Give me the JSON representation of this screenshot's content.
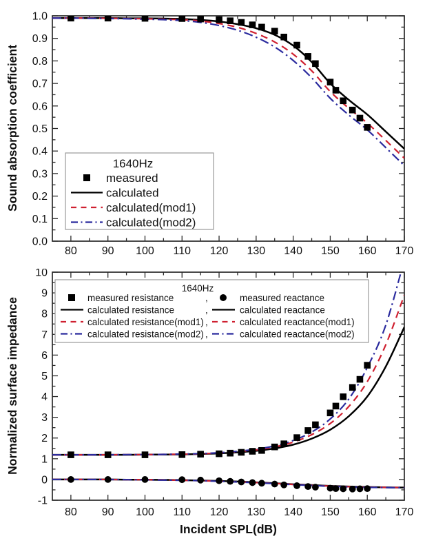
{
  "figure": {
    "background": "#ffffff",
    "frame_color": "#2a2a2a",
    "text_color": "#111111"
  },
  "colors": {
    "measured": "#000000",
    "calculated": "#000000",
    "mod1": "#cf2030",
    "mod2": "#2b2b9e"
  },
  "chart_data": [
    {
      "id": "absorption",
      "type": "line",
      "title": "",
      "xlabel": "",
      "ylabel": "Sound absorption coefficient",
      "xlim": [
        75,
        170
      ],
      "ylim": [
        0.0,
        1.0
      ],
      "x_ticks": [
        80,
        90,
        100,
        110,
        120,
        130,
        140,
        150,
        160,
        170
      ],
      "x_minor_ticks": [
        85,
        95,
        105,
        115,
        125,
        135,
        145,
        155,
        165
      ],
      "y_ticks": [
        0.0,
        0.1,
        0.2,
        0.3,
        0.4,
        0.5,
        0.6,
        0.7,
        0.8,
        0.9,
        1.0
      ],
      "y_minor_ticks": [
        0.05,
        0.15,
        0.25,
        0.35,
        0.45,
        0.55,
        0.65,
        0.75,
        0.85,
        0.95
      ],
      "y_tick_decimals": 1,
      "grid": false,
      "legend": {
        "position": "lower-left-inside",
        "title": "1640Hz",
        "entries": [
          {
            "symbol": "square",
            "color": "#000000",
            "label": "measured"
          },
          {
            "symbol": "solid",
            "color": "#000000",
            "label": "calculated"
          },
          {
            "symbol": "dashed",
            "color": "#cf2030",
            "label": "calculated(mod1)"
          },
          {
            "symbol": "dashdot",
            "color": "#2b2b9e",
            "label": "calculated(mod2)"
          }
        ]
      },
      "series": [
        {
          "name": "calculated",
          "style": "solid",
          "color": "#000000",
          "x": [
            75,
            80,
            85,
            90,
            95,
            100,
            105,
            110,
            115,
            120,
            125,
            130,
            135,
            140,
            145,
            150,
            155,
            160,
            165,
            170
          ],
          "y": [
            0.99,
            0.99,
            0.99,
            0.99,
            0.989,
            0.989,
            0.988,
            0.986,
            0.982,
            0.975,
            0.963,
            0.945,
            0.916,
            0.868,
            0.795,
            0.7,
            0.627,
            0.562,
            0.486,
            0.41
          ]
        },
        {
          "name": "calculated(mod1)",
          "style": "dashed",
          "color": "#cf2030",
          "x": [
            75,
            80,
            85,
            90,
            95,
            100,
            105,
            110,
            115,
            120,
            125,
            130,
            135,
            140,
            145,
            150,
            155,
            160,
            165,
            170
          ],
          "y": [
            0.99,
            0.99,
            0.99,
            0.989,
            0.988,
            0.987,
            0.985,
            0.983,
            0.977,
            0.966,
            0.949,
            0.922,
            0.884,
            0.83,
            0.756,
            0.664,
            0.59,
            0.524,
            0.447,
            0.368
          ]
        },
        {
          "name": "calculated(mod2)",
          "style": "dashdot",
          "color": "#2b2b9e",
          "x": [
            75,
            80,
            85,
            90,
            95,
            100,
            105,
            110,
            115,
            120,
            125,
            130,
            135,
            140,
            145,
            150,
            155,
            160,
            165,
            170
          ],
          "y": [
            0.99,
            0.99,
            0.989,
            0.988,
            0.987,
            0.985,
            0.983,
            0.979,
            0.971,
            0.957,
            0.936,
            0.905,
            0.862,
            0.802,
            0.725,
            0.634,
            0.56,
            0.494,
            0.415,
            0.335
          ]
        },
        {
          "name": "measured",
          "style": "scatter-square",
          "color": "#000000",
          "x": [
            80,
            90,
            100,
            110,
            115,
            120,
            123,
            126,
            129,
            131.5,
            135,
            137.5,
            141,
            144,
            146,
            150,
            151.5,
            153.5,
            156,
            158,
            160
          ],
          "y": [
            0.99,
            0.99,
            0.989,
            0.988,
            0.986,
            0.983,
            0.978,
            0.971,
            0.96,
            0.95,
            0.932,
            0.906,
            0.87,
            0.82,
            0.788,
            0.706,
            0.67,
            0.623,
            0.582,
            0.546,
            0.505
          ]
        }
      ]
    },
    {
      "id": "impedance",
      "type": "line",
      "title": "",
      "xlabel": "Incident SPL(dB)",
      "ylabel": "Normalized surface impedance",
      "xlim": [
        75,
        170
      ],
      "ylim": [
        -1,
        10
      ],
      "x_ticks": [
        80,
        90,
        100,
        110,
        120,
        130,
        140,
        150,
        160,
        170
      ],
      "x_minor_ticks": [
        85,
        95,
        105,
        115,
        125,
        135,
        145,
        155,
        165
      ],
      "y_ticks": [
        -1,
        0,
        1,
        2,
        3,
        4,
        5,
        6,
        7,
        8,
        9,
        10
      ],
      "y_minor_ticks": [
        -0.5,
        0.5,
        1.5,
        2.5,
        3.5,
        4.5,
        5.5,
        6.5,
        7.5,
        8.5,
        9.5
      ],
      "y_tick_decimals": 0,
      "grid": false,
      "legend": {
        "position": "upper-left-inside",
        "title": "1640Hz",
        "rows": [
          {
            "left": {
              "symbol": "square",
              "color": "#000000",
              "label": "measured resistance"
            },
            "sep": ",",
            "right": {
              "symbol": "circle",
              "color": "#000000",
              "label": "measured reactance"
            }
          },
          {
            "left": {
              "symbol": "solid",
              "color": "#000000",
              "label": "calculated resistance"
            },
            "sep": ",",
            "right": {
              "symbol": "solid",
              "color": "#000000",
              "label": "calculated reactance"
            }
          },
          {
            "left": {
              "symbol": "dashed",
              "color": "#cf2030",
              "label": "calculated resistance(mod1)"
            },
            "sep": ",",
            "right": {
              "symbol": "dashed",
              "color": "#cf2030",
              "label": "calculated reactance(mod1)"
            }
          },
          {
            "left": {
              "symbol": "dashdot",
              "color": "#2b2b9e",
              "label": "calculated resistance(mod2)"
            },
            "sep": ",",
            "right": {
              "symbol": "dashdot",
              "color": "#2b2b9e",
              "label": "calculated reactance(mod2)"
            }
          }
        ]
      },
      "series": [
        {
          "name": "calculated resistance",
          "style": "solid",
          "color": "#000000",
          "x": [
            75,
            80,
            85,
            90,
            95,
            100,
            105,
            110,
            115,
            120,
            125,
            130,
            135,
            140,
            145,
            150,
            155,
            160,
            165,
            170
          ],
          "y": [
            1.19,
            1.19,
            1.19,
            1.19,
            1.19,
            1.2,
            1.2,
            1.21,
            1.23,
            1.26,
            1.31,
            1.38,
            1.5,
            1.68,
            1.97,
            2.4,
            3.05,
            4.0,
            5.45,
            7.35
          ]
        },
        {
          "name": "calculated resistance(mod1)",
          "style": "dashed",
          "color": "#cf2030",
          "x": [
            75,
            80,
            85,
            90,
            95,
            100,
            105,
            110,
            115,
            120,
            125,
            130,
            135,
            140,
            145,
            150,
            155,
            160,
            165,
            170
          ],
          "y": [
            1.19,
            1.19,
            1.19,
            1.19,
            1.2,
            1.2,
            1.21,
            1.22,
            1.24,
            1.28,
            1.34,
            1.43,
            1.57,
            1.8,
            2.16,
            2.7,
            3.52,
            4.72,
            6.5,
            8.9
          ]
        },
        {
          "name": "calculated resistance(mod2)",
          "style": "dashdot",
          "color": "#2b2b9e",
          "x": [
            75,
            80,
            85,
            90,
            95,
            100,
            105,
            110,
            115,
            120,
            125,
            130,
            135,
            140,
            145,
            150,
            155,
            160,
            165,
            170
          ],
          "y": [
            1.19,
            1.19,
            1.19,
            1.19,
            1.2,
            1.2,
            1.21,
            1.23,
            1.25,
            1.29,
            1.36,
            1.46,
            1.62,
            1.88,
            2.29,
            2.92,
            3.88,
            5.4,
            7.45,
            10.6
          ]
        },
        {
          "name": "calculated reactance",
          "style": "solid",
          "color": "#000000",
          "x": [
            75,
            80,
            85,
            90,
            95,
            100,
            105,
            110,
            115,
            120,
            125,
            130,
            135,
            140,
            145,
            150,
            155,
            160,
            165,
            170
          ],
          "y": [
            0.0,
            0.0,
            0.0,
            0.0,
            -0.01,
            -0.01,
            -0.02,
            -0.03,
            -0.05,
            -0.07,
            -0.1,
            -0.14,
            -0.18,
            -0.23,
            -0.27,
            -0.31,
            -0.34,
            -0.36,
            -0.38,
            -0.39
          ]
        },
        {
          "name": "calculated reactance(mod1)",
          "style": "dashed",
          "color": "#cf2030",
          "x": [
            75,
            80,
            85,
            90,
            95,
            100,
            105,
            110,
            115,
            120,
            125,
            130,
            135,
            140,
            145,
            150,
            155,
            160,
            165,
            170
          ],
          "y": [
            0.0,
            0.0,
            0.0,
            0.0,
            -0.01,
            -0.01,
            -0.02,
            -0.04,
            -0.06,
            -0.08,
            -0.11,
            -0.15,
            -0.19,
            -0.24,
            -0.28,
            -0.32,
            -0.35,
            -0.37,
            -0.38,
            -0.39
          ]
        },
        {
          "name": "calculated reactance(mod2)",
          "style": "dashdot",
          "color": "#2b2b9e",
          "x": [
            75,
            80,
            85,
            90,
            95,
            100,
            105,
            110,
            115,
            120,
            125,
            130,
            135,
            140,
            145,
            150,
            155,
            160,
            165,
            170
          ],
          "y": [
            0.0,
            0.0,
            0.0,
            0.0,
            -0.01,
            -0.02,
            -0.03,
            -0.04,
            -0.06,
            -0.09,
            -0.12,
            -0.16,
            -0.2,
            -0.25,
            -0.29,
            -0.33,
            -0.36,
            -0.38,
            -0.39,
            -0.4
          ]
        },
        {
          "name": "measured resistance",
          "style": "scatter-square",
          "color": "#000000",
          "x": [
            80,
            90,
            100,
            110,
            115,
            120,
            123,
            126,
            129,
            131.5,
            135,
            137.5,
            141,
            144,
            146,
            150,
            151.5,
            153.5,
            156,
            158,
            160
          ],
          "y": [
            1.19,
            1.19,
            1.19,
            1.2,
            1.22,
            1.24,
            1.27,
            1.31,
            1.36,
            1.4,
            1.57,
            1.72,
            2.02,
            2.36,
            2.64,
            3.21,
            3.54,
            3.99,
            4.44,
            4.83,
            5.51
          ]
        },
        {
          "name": "measured reactance",
          "style": "scatter-circle",
          "color": "#000000",
          "x": [
            80,
            90,
            100,
            110,
            115,
            120,
            123,
            126,
            129,
            131.5,
            135,
            137.5,
            141,
            144,
            146,
            150,
            151.5,
            153.5,
            156,
            158,
            160
          ],
          "y": [
            0.0,
            0.0,
            0.0,
            -0.01,
            -0.03,
            -0.06,
            -0.09,
            -0.12,
            -0.15,
            -0.18,
            -0.22,
            -0.26,
            -0.3,
            -0.34,
            -0.37,
            -0.42,
            -0.44,
            -0.45,
            -0.46,
            -0.45,
            -0.44
          ]
        }
      ]
    }
  ]
}
